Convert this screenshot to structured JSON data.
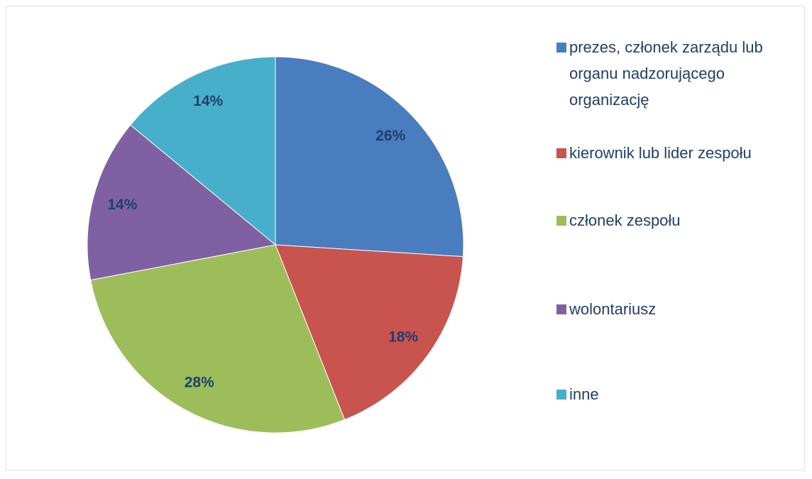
{
  "chart_data": {
    "type": "pie",
    "categories": [
      "prezes, członek zarządu lub organu nadzorującego organizację",
      "kierownik lub lider zespołu",
      "członek zespołu",
      "wolontariusz",
      "inne"
    ],
    "values": [
      26,
      18,
      28,
      14,
      14
    ],
    "value_labels": [
      "26%",
      "18%",
      "28%",
      "14%",
      "14%"
    ],
    "colors": [
      "#4a7cc0",
      "#c9534f",
      "#9dbd5a",
      "#7f61a3",
      "#47afc9"
    ],
    "legend": "right"
  }
}
